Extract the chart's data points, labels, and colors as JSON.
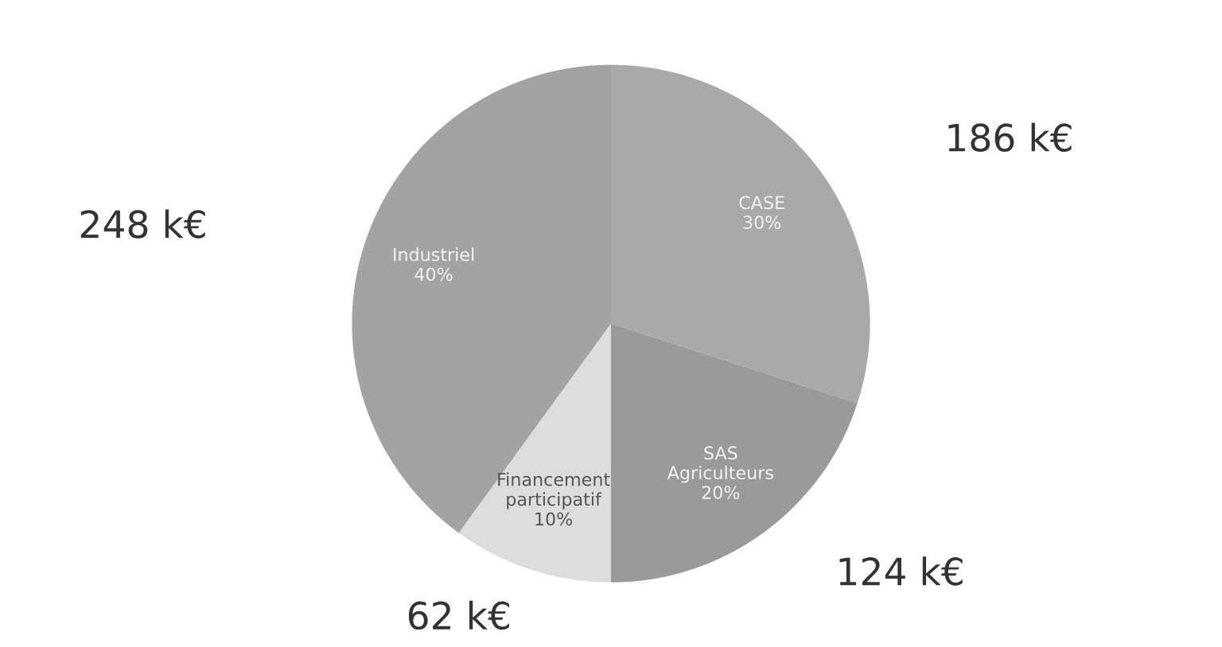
{
  "chart_data": {
    "type": "pie",
    "categories": [
      "CASE\n30%",
      "SAS\nAgriculteurs\n20%",
      "Financement\nparticipatif\n10%",
      "Industriel\n40%"
    ],
    "values": [
      186,
      124,
      62,
      248
    ],
    "value_labels": [
      "186 k€",
      "124 k€",
      "62 k€",
      "248 k€"
    ],
    "colors": [
      "#a9a9a9",
      "#9a9a9a",
      "#dddddd",
      "#a3a3a3"
    ],
    "legend": false
  }
}
